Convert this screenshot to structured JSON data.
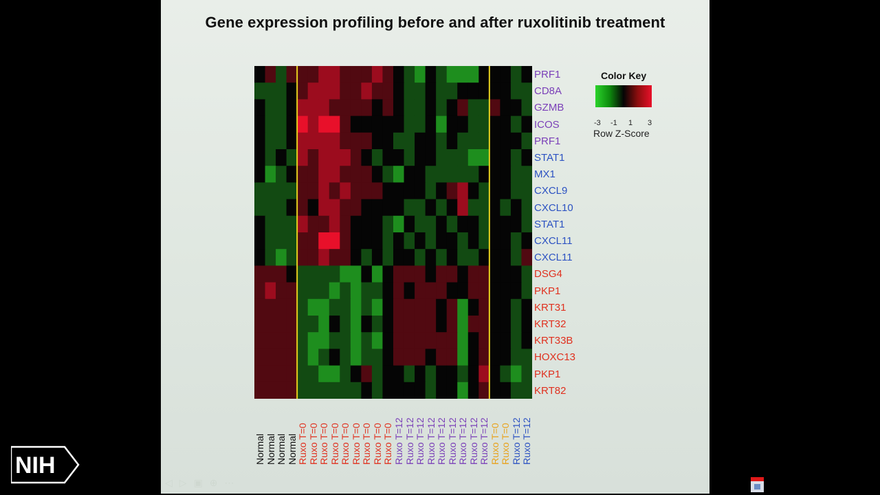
{
  "slide": {
    "title": "Gene expression profiling before and after ruxolitinib treatment"
  },
  "logo": {
    "text": "NIH"
  },
  "colors": {
    "green_high": "#2bd32b",
    "black_mid": "#050505",
    "red_high": "#e8102a",
    "separator": "#e8d21e",
    "label_purple": "#7a3fb8",
    "label_blue": "#2c52c2",
    "label_red": "#e0301e",
    "label_orange": "#e8a21c",
    "label_black": "#111111"
  },
  "chart_data": {
    "type": "heatmap",
    "color_key": {
      "title": "Color Key",
      "label": "Row Z-Score",
      "ticks": [
        "-3",
        "-1",
        "1",
        "3"
      ],
      "range": [
        -3,
        3
      ]
    },
    "rows": [
      {
        "gene": "PRF1",
        "group": "purple"
      },
      {
        "gene": "CD8A",
        "group": "purple"
      },
      {
        "gene": "GZMB",
        "group": "purple"
      },
      {
        "gene": "ICOS",
        "group": "purple"
      },
      {
        "gene": "PRF1",
        "group": "purple"
      },
      {
        "gene": "STAT1",
        "group": "blue"
      },
      {
        "gene": "MX1",
        "group": "blue"
      },
      {
        "gene": "CXCL9",
        "group": "blue"
      },
      {
        "gene": "CXCL10",
        "group": "blue"
      },
      {
        "gene": "STAT1",
        "group": "blue"
      },
      {
        "gene": "CXCL11",
        "group": "blue"
      },
      {
        "gene": "CXCL11",
        "group": "blue"
      },
      {
        "gene": "DSG4",
        "group": "red"
      },
      {
        "gene": "PKP1",
        "group": "red"
      },
      {
        "gene": "KRT31",
        "group": "red"
      },
      {
        "gene": "KRT32",
        "group": "red"
      },
      {
        "gene": "KRT33B",
        "group": "red"
      },
      {
        "gene": "HOXC13",
        "group": "red"
      },
      {
        "gene": "PKP1",
        "group": "red"
      },
      {
        "gene": "KRT82",
        "group": "red"
      }
    ],
    "columns": [
      {
        "label": "Normal",
        "group": "black"
      },
      {
        "label": "Normal",
        "group": "black"
      },
      {
        "label": "Normal",
        "group": "black"
      },
      {
        "label": "Normal",
        "group": "black"
      },
      {
        "label": "Ruxo T=0",
        "group": "red"
      },
      {
        "label": "Ruxo T=0",
        "group": "red"
      },
      {
        "label": "Ruxo T=0",
        "group": "red"
      },
      {
        "label": "Ruxo T=0",
        "group": "red"
      },
      {
        "label": "Ruxo T=0",
        "group": "red"
      },
      {
        "label": "Ruxo T=0",
        "group": "red"
      },
      {
        "label": "Ruxo T=0",
        "group": "red"
      },
      {
        "label": "Ruxo T=0",
        "group": "red"
      },
      {
        "label": "Ruxo T=0",
        "group": "red"
      },
      {
        "label": "Ruxo T=12",
        "group": "purple"
      },
      {
        "label": "Ruxo T=12",
        "group": "purple"
      },
      {
        "label": "Ruxo T=12",
        "group": "purple"
      },
      {
        "label": "Ruxo T=12",
        "group": "purple"
      },
      {
        "label": "Ruxo T=12",
        "group": "purple"
      },
      {
        "label": "Ruxo T=12",
        "group": "purple"
      },
      {
        "label": "Ruxo T=12",
        "group": "purple"
      },
      {
        "label": "Ruxo T=12",
        "group": "purple"
      },
      {
        "label": "Ruxo T=12",
        "group": "purple"
      },
      {
        "label": "Ruxo T=0",
        "group": "orange"
      },
      {
        "label": "Ruxo T=0",
        "group": "orange"
      },
      {
        "label": "Ruxo T=12",
        "group": "blue"
      },
      {
        "label": "Ruxo T=12",
        "group": "blue"
      }
    ],
    "separators_after_column": [
      4,
      22
    ],
    "values": [
      [
        0,
        1,
        -1,
        1,
        1,
        1,
        2,
        2,
        1,
        1,
        1,
        2,
        1,
        0,
        -1,
        -2,
        0,
        -1,
        -2,
        -2,
        -2,
        0,
        0,
        0,
        -1,
        0
      ],
      [
        -1,
        -1,
        -1,
        0,
        1,
        2,
        2,
        2,
        1,
        1,
        2,
        1,
        1,
        0,
        -1,
        -1,
        0,
        -1,
        -1,
        0,
        0,
        0,
        0,
        0,
        -1,
        -1
      ],
      [
        0,
        -1,
        -1,
        0,
        2,
        2,
        2,
        1,
        1,
        1,
        1,
        0,
        1,
        0,
        -1,
        -1,
        0,
        -1,
        0,
        1,
        -1,
        -1,
        1,
        0,
        0,
        -1
      ],
      [
        0,
        -1,
        -1,
        0,
        3,
        2,
        3,
        3,
        1,
        0,
        0,
        0,
        0,
        0,
        -1,
        -1,
        0,
        -2,
        0,
        0,
        -1,
        -1,
        0,
        0,
        -1,
        0
      ],
      [
        0,
        -1,
        -1,
        0,
        2,
        2,
        2,
        2,
        1,
        1,
        1,
        0,
        0,
        -1,
        -1,
        0,
        0,
        -1,
        0,
        -1,
        -1,
        -1,
        0,
        0,
        0,
        -1
      ],
      [
        0,
        -1,
        0,
        -1,
        2,
        1,
        2,
        2,
        2,
        1,
        0,
        -1,
        0,
        0,
        -1,
        0,
        0,
        -1,
        -1,
        -1,
        -2,
        -2,
        0,
        0,
        -1,
        0
      ],
      [
        0,
        -2,
        -1,
        0,
        1,
        1,
        2,
        2,
        1,
        1,
        1,
        0,
        -1,
        -2,
        0,
        0,
        -1,
        -1,
        -1,
        -1,
        -1,
        0,
        0,
        0,
        -1,
        -1
      ],
      [
        -1,
        -1,
        -1,
        -1,
        1,
        1,
        2,
        1,
        2,
        1,
        1,
        1,
        0,
        0,
        0,
        0,
        -1,
        0,
        1,
        2,
        0,
        -1,
        0,
        0,
        -1,
        -1
      ],
      [
        -1,
        -1,
        -1,
        0,
        1,
        0,
        2,
        2,
        1,
        1,
        0,
        0,
        0,
        0,
        -1,
        -1,
        0,
        -1,
        0,
        2,
        -1,
        -1,
        0,
        -1,
        0,
        -1
      ],
      [
        0,
        -1,
        -1,
        -1,
        2,
        1,
        1,
        2,
        1,
        0,
        0,
        0,
        -1,
        -2,
        0,
        -1,
        -1,
        0,
        -1,
        0,
        0,
        -1,
        0,
        0,
        0,
        -1
      ],
      [
        0,
        -1,
        -1,
        -1,
        1,
        1,
        3,
        3,
        1,
        0,
        0,
        0,
        -1,
        0,
        -1,
        0,
        -1,
        0,
        0,
        -1,
        0,
        -1,
        0,
        0,
        -1,
        0
      ],
      [
        0,
        -1,
        -2,
        -1,
        1,
        1,
        2,
        1,
        1,
        0,
        -1,
        0,
        -1,
        0,
        0,
        -1,
        0,
        -1,
        0,
        -1,
        -1,
        0,
        0,
        0,
        -1,
        1
      ],
      [
        1,
        1,
        1,
        0,
        -1,
        -1,
        -1,
        -1,
        -2,
        -2,
        0,
        -2,
        0,
        1,
        1,
        1,
        0,
        1,
        1,
        0,
        1,
        1,
        0,
        0,
        0,
        -1
      ],
      [
        1,
        2,
        1,
        1,
        -1,
        -1,
        -1,
        -2,
        -1,
        -2,
        -1,
        -1,
        0,
        1,
        0,
        1,
        1,
        1,
        0,
        0,
        1,
        1,
        0,
        0,
        0,
        -1
      ],
      [
        1,
        1,
        1,
        1,
        -1,
        -2,
        -2,
        -1,
        -1,
        -2,
        -1,
        -2,
        0,
        1,
        1,
        1,
        1,
        0,
        1,
        -2,
        0,
        1,
        0,
        0,
        -1,
        0
      ],
      [
        1,
        1,
        1,
        1,
        -1,
        -1,
        -2,
        0,
        -1,
        -2,
        0,
        -1,
        0,
        1,
        1,
        1,
        1,
        0,
        1,
        -2,
        1,
        1,
        0,
        0,
        -1,
        0
      ],
      [
        1,
        1,
        1,
        1,
        -1,
        -2,
        -2,
        -1,
        -1,
        -2,
        -1,
        -2,
        0,
        1,
        1,
        1,
        1,
        1,
        1,
        -2,
        0,
        1,
        0,
        0,
        -1,
        0
      ],
      [
        1,
        1,
        1,
        1,
        -1,
        -2,
        -1,
        0,
        -1,
        -2,
        -1,
        -1,
        0,
        1,
        1,
        1,
        0,
        1,
        1,
        -2,
        0,
        1,
        0,
        0,
        -1,
        -1
      ],
      [
        1,
        1,
        1,
        1,
        -1,
        -1,
        -2,
        -2,
        -1,
        0,
        1,
        -1,
        0,
        0,
        -1,
        0,
        -1,
        0,
        0,
        -1,
        0,
        2,
        0,
        -1,
        -2,
        -1
      ],
      [
        1,
        1,
        1,
        1,
        -1,
        -1,
        -1,
        -1,
        -1,
        -1,
        0,
        -1,
        0,
        0,
        0,
        0,
        -1,
        0,
        0,
        -2,
        0,
        1,
        0,
        0,
        -1,
        -1
      ]
    ]
  }
}
